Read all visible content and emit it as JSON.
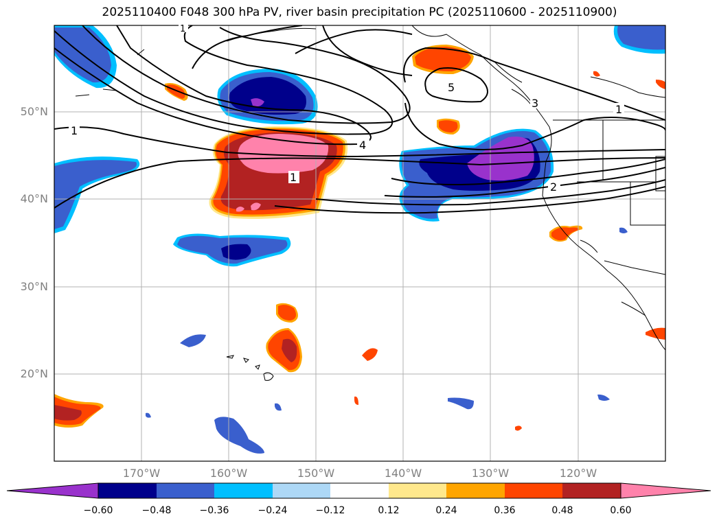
{
  "title": "2025110400 F048 300 hPa PV, river basin precipitation PC (2025110600 - 2025110900)",
  "map": {
    "region": "North Pacific / western North America",
    "lon_range": [
      -180,
      -110
    ],
    "lat_range": [
      10,
      60
    ],
    "lat_ticks": [
      {
        "value": 50,
        "label": "50°N"
      },
      {
        "value": 40,
        "label": "40°N"
      },
      {
        "value": 30,
        "label": "30°N"
      },
      {
        "value": 20,
        "label": "20°N"
      }
    ],
    "lon_ticks": [
      {
        "value": -170,
        "label": "170°W"
      },
      {
        "value": -160,
        "label": "160°W"
      },
      {
        "value": -150,
        "label": "150°W"
      },
      {
        "value": -140,
        "label": "140°W"
      },
      {
        "value": -130,
        "label": "130°W"
      },
      {
        "value": -120,
        "label": "120°W"
      }
    ],
    "pv_contour_labels": [
      "1",
      "1",
      "4",
      "1",
      "2",
      "3",
      "5",
      "1"
    ]
  },
  "colorbar": {
    "ticks": [
      "−0.60",
      "−0.48",
      "−0.36",
      "−0.24",
      "−0.12",
      "0.12",
      "0.24",
      "0.36",
      "0.48",
      "0.60"
    ],
    "colors": [
      "#9932CC",
      "#00008B",
      "#3A5FCD",
      "#00BFFF",
      "#ADD8F6",
      "#FFFFFF",
      "#FFE88C",
      "#FFA500",
      "#FF4500",
      "#B22222",
      "#FF82AB"
    ]
  }
}
